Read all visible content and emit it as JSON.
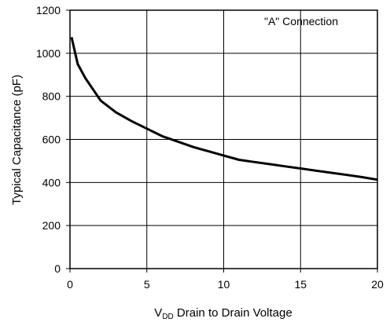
{
  "chart_data": {
    "type": "line",
    "title": "",
    "annotation": "\"A\" Connection",
    "xlabel_main": "V",
    "xlabel_sub": "DD",
    "xlabel_rest": " Drain to Drain Voltage",
    "ylabel": "Typical Capacitance (pF)",
    "xlim": [
      0,
      20
    ],
    "ylim": [
      0,
      1200
    ],
    "xticks": [
      "0",
      "5",
      "10",
      "15",
      "20"
    ],
    "yticks": [
      "0",
      "200",
      "400",
      "600",
      "800",
      "1000",
      "1200"
    ],
    "grid": true,
    "series": [
      {
        "x": [
          0.1,
          0.5,
          1,
          2,
          3,
          4,
          5,
          6,
          7,
          8,
          9,
          10,
          11,
          12,
          13,
          14,
          15,
          16,
          17,
          18,
          19,
          20
        ],
        "y": [
          1075,
          950,
          885,
          780,
          725,
          685,
          650,
          615,
          590,
          565,
          545,
          525,
          505,
          495,
          485,
          475,
          465,
          455,
          445,
          435,
          425,
          413
        ]
      }
    ]
  }
}
